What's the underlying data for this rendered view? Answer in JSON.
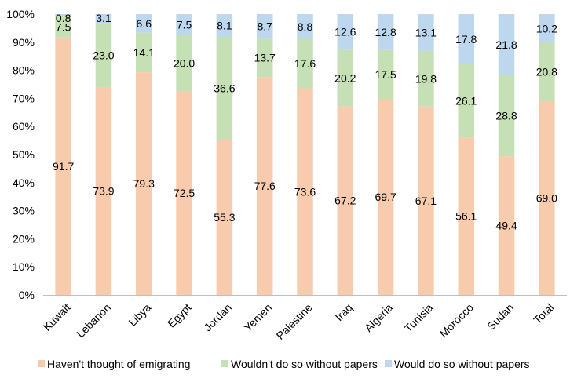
{
  "chart_data": {
    "type": "bar",
    "stacked": true,
    "percent": true,
    "categories": [
      "Kuwait",
      "Lebanon",
      "Libya",
      "Egypt",
      "Jordan",
      "Yemen",
      "Palestine",
      "Iraq",
      "Algeria",
      "Tunisia",
      "Morocco",
      "Sudan",
      "Total"
    ],
    "series": [
      {
        "name": "Haven't thought of emigrating",
        "color": "#F8CBAD",
        "values": [
          91.7,
          73.9,
          79.3,
          72.5,
          55.3,
          77.6,
          73.6,
          67.2,
          69.7,
          67.1,
          56.1,
          49.4,
          69.0
        ],
        "labels": [
          "91.7",
          "73.9",
          "79.3",
          "72.5",
          "55.3",
          "77.6",
          "73.6",
          "67.2",
          "69.7",
          "67.1",
          "56.1",
          "49.4",
          "69.0"
        ]
      },
      {
        "name": "Wouldn't do so without papers",
        "color": "#C5E0B4",
        "values": [
          7.5,
          23.0,
          14.1,
          20.0,
          36.6,
          13.7,
          17.6,
          20.2,
          17.5,
          19.8,
          26.1,
          28.8,
          20.8
        ],
        "labels": [
          "7.5",
          "23.0",
          "14.1",
          "20.0",
          "36.6",
          "13.7",
          "17.6",
          "20.2",
          "17.5",
          "19.8",
          "26.1",
          "28.8",
          "20.8"
        ]
      },
      {
        "name": "Would do so without papers",
        "color": "#BDD7EE",
        "values": [
          0.8,
          3.1,
          6.6,
          7.5,
          8.1,
          8.7,
          8.8,
          12.6,
          12.8,
          13.1,
          17.8,
          21.8,
          10.2
        ],
        "labels": [
          "0.8",
          "3.1",
          "6.6",
          "7.5",
          "8.1",
          "8.7",
          "8.8",
          "12.6",
          "12.8",
          "13.1",
          "17.8",
          "21.8",
          "10.2"
        ]
      }
    ],
    "yticks": [
      "0%",
      "10%",
      "20%",
      "30%",
      "40%",
      "50%",
      "60%",
      "70%",
      "80%",
      "90%",
      "100%"
    ],
    "ylim": [
      0,
      100
    ],
    "grid": false,
    "legend_position": "bottom"
  }
}
